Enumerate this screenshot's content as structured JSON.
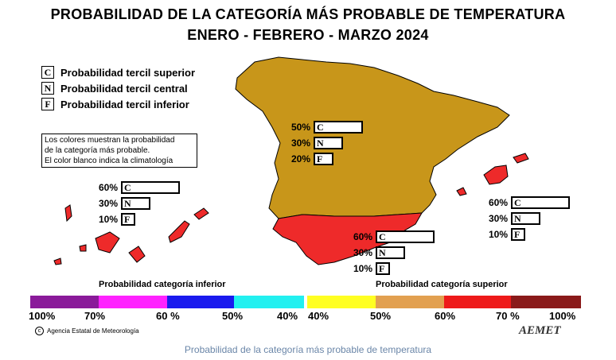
{
  "title": {
    "line1": "PROBABILIDAD DE LA CATEGORÍA MÁS PROBABLE DE TEMPERATURA",
    "line2": "ENERO - FEBRERO - MARZO 2024"
  },
  "legend": [
    {
      "letter": "C",
      "text": "Probabilidad  tercil superior"
    },
    {
      "letter": "N",
      "text": "Probabilidad  tercil central"
    },
    {
      "letter": "F",
      "text": "Probabilidad  tercil inferior"
    }
  ],
  "note": {
    "line1": "Los colores muestran la probabilidad",
    "line2": "de la categoría más probable.",
    "line3": "El color blanco indica la climatología"
  },
  "regions": [
    {
      "name": "peninsula",
      "color": "#c8961a",
      "C": "50%",
      "N": "30%",
      "F": "20%",
      "c_frac": 0.5,
      "n_frac": 0.3,
      "f_frac": 0.2
    },
    {
      "name": "canarias",
      "color": "#ee2a2a",
      "C": "60%",
      "N": "30%",
      "F": "10%",
      "c_frac": 0.6,
      "n_frac": 0.3,
      "f_frac": 0.1
    },
    {
      "name": "baleares",
      "color": "#ee2a2a",
      "C": "60%",
      "N": "30%",
      "F": "10%",
      "c_frac": 0.6,
      "n_frac": 0.3,
      "f_frac": 0.1
    },
    {
      "name": "andalucia",
      "color": "#ee2a2a",
      "C": "60%",
      "N": "30%",
      "F": "10%",
      "c_frac": 0.6,
      "n_frac": 0.3,
      "f_frac": 0.1
    }
  ],
  "colorbar": {
    "label_lower": "Probabilidad categoría inferior",
    "label_upper": "Probabilidad categoría superior",
    "lower_colors": [
      "#8a1a9a",
      "#ff22ff",
      "#1a1aee",
      "#22f0f0"
    ],
    "upper_colors": [
      "#ffff22",
      "#e2a050",
      "#ee1a1a",
      "#8a1a1a"
    ],
    "lower_ticks": [
      "100%",
      "70%",
      "60 %",
      "50%",
      "40%"
    ],
    "upper_ticks": [
      "40%",
      "50%",
      "60%",
      "70 %",
      "100%"
    ]
  },
  "credit": "Agencia Estatal de Meteorología",
  "logo": "AEMET",
  "caption": "Probabilidad de la categoría más probable de temperatura"
}
